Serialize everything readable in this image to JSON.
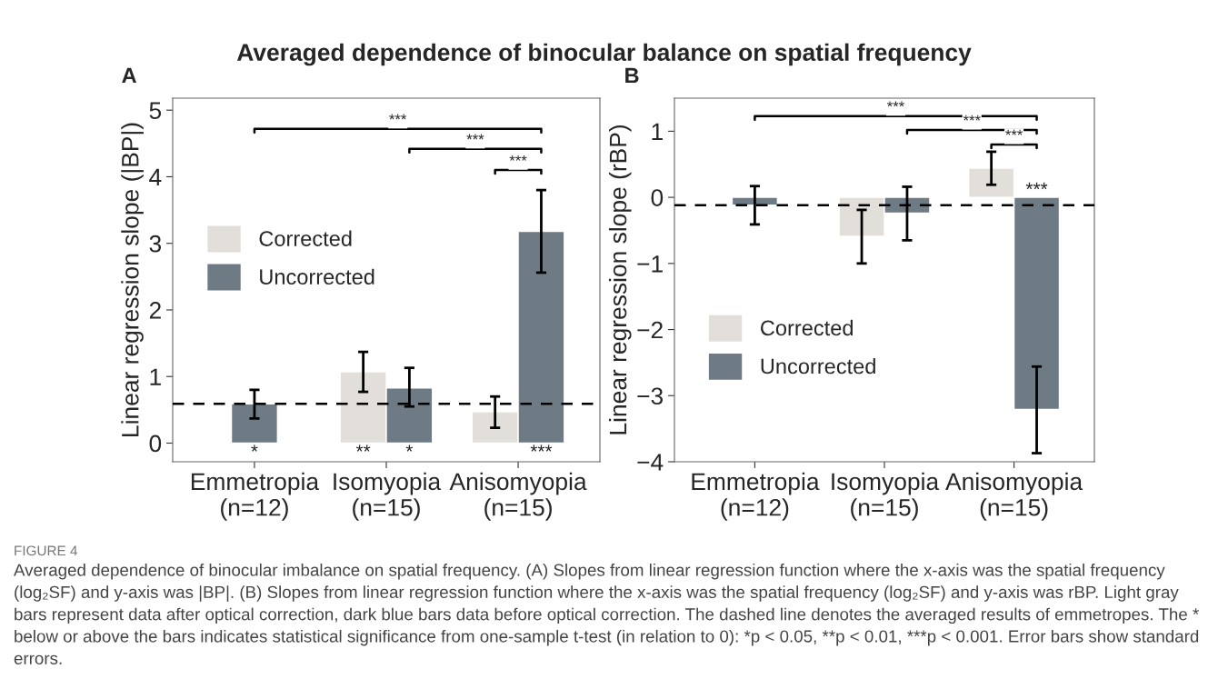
{
  "chart_data": [
    {
      "type": "bar",
      "title": "Averaged dependence of binocular balance on spatial frequency",
      "ylabel": "Linear regression slope (|BP|)",
      "categories": [
        "Emmetropia\n(n=12)",
        "Isomyopia\n(n=15)",
        "Anisomyopia\n(n=15)"
      ],
      "series": [
        {
          "name": "Corrected",
          "color": "#e2dfda",
          "values": [
            null,
            1.07,
            0.47
          ],
          "errors": [
            null,
            [
              0.77,
              1.37
            ],
            [
              0.23,
              0.7
            ]
          ]
        },
        {
          "name": "Uncorrected",
          "color": "#6e7b85",
          "values": [
            0.59,
            0.83,
            3.18
          ],
          "errors": [
            [
              0.37,
              0.8
            ],
            [
              0.55,
              1.13
            ],
            [
              2.56,
              3.8
            ]
          ]
        }
      ],
      "ylim": [
        -0.28,
        5.18
      ],
      "yticks": [
        0,
        1,
        2,
        3,
        4,
        5
      ],
      "grid": false,
      "legend": "left",
      "ref_lines": [
        {
          "axis": "y",
          "value": 0.59,
          "line_style": "dashed",
          "color": "#000000"
        }
      ],
      "annotations": [
        "A",
        "*",
        "**",
        "*",
        "***",
        "***",
        "***",
        "***",
        "FIGURE 4",
        "Averaged dependence of binocular imbalance on spatial frequency. (A) Slopes from linear regression function where the x-axis was the spatial frequency (log₂SF) and y-axis was |BP|. (B) Slopes from linear regression function where the x-axis was the spatial frequency (log₂SF) and y-axis was rBP. Light gray bars represent data after optical correction, dark blue bars data before optical correction. The dashed line denotes the averaged results of emmetropes. The * below or above the bars indicates statistical significance from one-sample t-test (in relation to 0): *p < 0.05, **p < 0.01, ***p < 0.001. Error bars show standard errors."
      ]
    },
    {
      "type": "bar",
      "ylabel": "Linear regression slope (rBP)",
      "categories": [
        "Emmetropia\n(n=12)",
        "Isomyopia\n(n=15)",
        "Anisomyopia\n(n=15)"
      ],
      "series": [
        {
          "name": "Corrected",
          "color": "#e2dfda",
          "values": [
            null,
            -0.59,
            0.44
          ],
          "errors": [
            null,
            [
              -1.0,
              -0.19
            ],
            [
              0.19,
              0.69
            ]
          ]
        },
        {
          "name": "Uncorrected",
          "color": "#6e7b85",
          "values": [
            -0.12,
            -0.24,
            -3.21
          ],
          "errors": [
            [
              -0.41,
              0.17
            ],
            [
              -0.65,
              0.16
            ],
            [
              -3.87,
              -2.56
            ]
          ]
        }
      ],
      "ylim": [
        -4.0,
        1.5
      ],
      "yticks": [
        -4,
        -3,
        -2,
        -1,
        0,
        1
      ],
      "grid": false,
      "legend": "bottom left",
      "ref_lines": [
        {
          "axis": "y",
          "value": -0.12,
          "line_style": "dashed",
          "color": "#000000"
        }
      ],
      "annotations": [
        "B",
        "***",
        "***",
        "***",
        "***"
      ]
    }
  ]
}
